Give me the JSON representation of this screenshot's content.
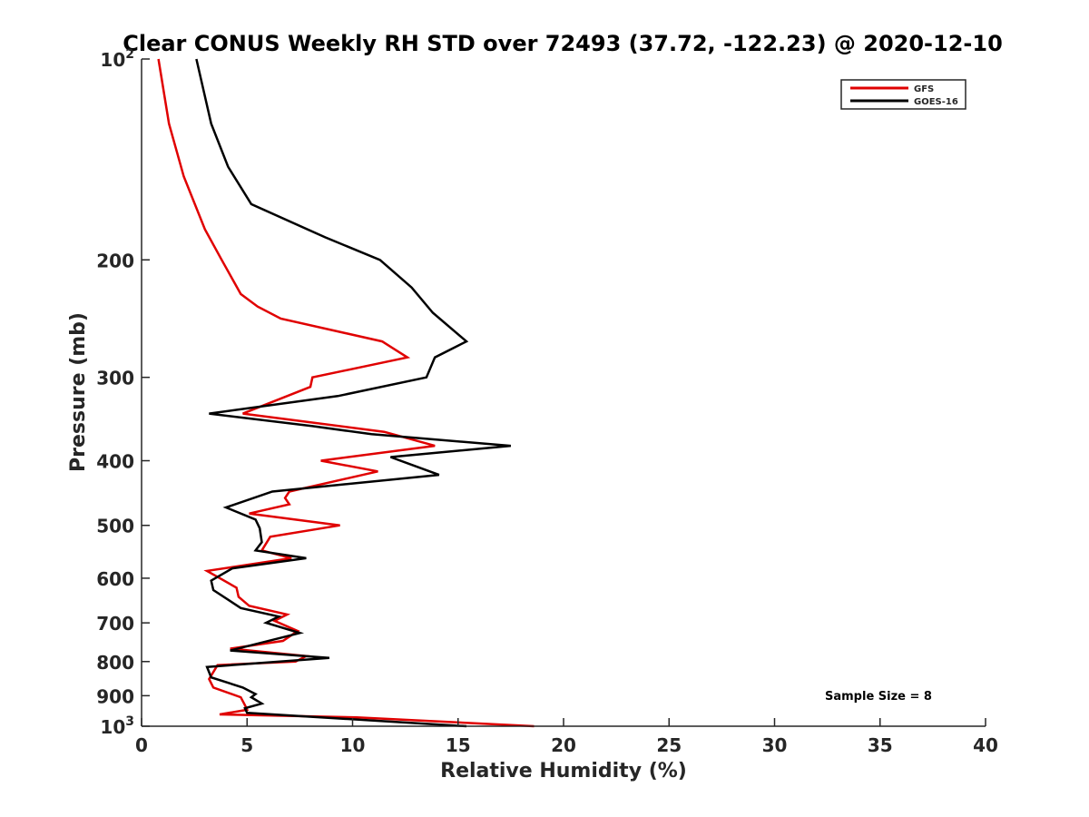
{
  "chart_data": {
    "type": "line",
    "title": "Clear CONUS Weekly RH STD over 72493 (37.72, -122.23) @ 2020-12-10",
    "xlabel": "Relative Humidity (%)",
    "ylabel": "Pressure (mb)",
    "xlim": [
      0,
      40
    ],
    "ylim": [
      1000,
      100
    ],
    "y_scale": "log",
    "y_reversed": true,
    "grid": false,
    "legend_position": "top-right",
    "xticks": [
      0,
      5,
      10,
      15,
      20,
      25,
      30,
      35,
      40
    ],
    "xtick_labels": [
      "0",
      "5",
      "10",
      "15",
      "20",
      "25",
      "30",
      "35",
      "40"
    ],
    "yticks": [
      100,
      200,
      300,
      400,
      500,
      600,
      700,
      800,
      900,
      1000
    ],
    "ytick_labels": [
      {
        "base": "10",
        "exp": "2"
      },
      {
        "base": "200",
        "exp": ""
      },
      {
        "base": "300",
        "exp": ""
      },
      {
        "base": "400",
        "exp": ""
      },
      {
        "base": "500",
        "exp": ""
      },
      {
        "base": "600",
        "exp": ""
      },
      {
        "base": "700",
        "exp": ""
      },
      {
        "base": "800",
        "exp": ""
      },
      {
        "base": "900",
        "exp": ""
      },
      {
        "base": "10",
        "exp": "3"
      }
    ],
    "annotation": "Sample Size = 8",
    "series": [
      {
        "name": "GFS",
        "color": "#e00000",
        "points": [
          [
            0.8,
            100
          ],
          [
            1.3,
            125
          ],
          [
            2.0,
            150
          ],
          [
            3.0,
            180
          ],
          [
            3.8,
            200
          ],
          [
            4.7,
            225
          ],
          [
            5.5,
            235
          ],
          [
            6.6,
            245
          ],
          [
            11.4,
            265
          ],
          [
            12.6,
            280
          ],
          [
            8.1,
            300
          ],
          [
            8.0,
            310
          ],
          [
            4.8,
            340
          ],
          [
            11.5,
            362
          ],
          [
            13.9,
            380
          ],
          [
            8.5,
            400
          ],
          [
            11.2,
            415
          ],
          [
            7.0,
            445
          ],
          [
            6.8,
            455
          ],
          [
            7.0,
            465
          ],
          [
            5.1,
            480
          ],
          [
            9.4,
            500
          ],
          [
            6.1,
            520
          ],
          [
            5.7,
            545
          ],
          [
            7.1,
            560
          ],
          [
            3.1,
            585
          ],
          [
            4.5,
            620
          ],
          [
            4.6,
            640
          ],
          [
            5.1,
            660
          ],
          [
            6.9,
            680
          ],
          [
            6.3,
            695
          ],
          [
            7.4,
            720
          ],
          [
            6.7,
            745
          ],
          [
            4.2,
            765
          ],
          [
            7.8,
            785
          ],
          [
            7.3,
            800
          ],
          [
            3.6,
            810
          ],
          [
            3.2,
            850
          ],
          [
            3.4,
            875
          ],
          [
            4.7,
            905
          ],
          [
            4.9,
            930
          ],
          [
            5.0,
            945
          ],
          [
            3.7,
            960
          ],
          [
            10.2,
            970
          ],
          [
            18.6,
            1000
          ]
        ]
      },
      {
        "name": "GOES-16",
        "color": "#000000",
        "points": [
          [
            2.6,
            100
          ],
          [
            3.3,
            125
          ],
          [
            4.1,
            145
          ],
          [
            5.2,
            165
          ],
          [
            8.7,
            185
          ],
          [
            11.3,
            200
          ],
          [
            12.8,
            220
          ],
          [
            13.8,
            240
          ],
          [
            15.4,
            265
          ],
          [
            13.9,
            280
          ],
          [
            13.5,
            300
          ],
          [
            9.3,
            320
          ],
          [
            3.2,
            340
          ],
          [
            8.1,
            355
          ],
          [
            10.9,
            365
          ],
          [
            17.5,
            380
          ],
          [
            11.8,
            395
          ],
          [
            14.1,
            420
          ],
          [
            6.2,
            445
          ],
          [
            4.0,
            470
          ],
          [
            5.4,
            490
          ],
          [
            5.6,
            505
          ],
          [
            5.7,
            530
          ],
          [
            5.4,
            545
          ],
          [
            7.8,
            560
          ],
          [
            4.3,
            580
          ],
          [
            3.3,
            605
          ],
          [
            3.4,
            625
          ],
          [
            4.7,
            665
          ],
          [
            6.5,
            685
          ],
          [
            5.9,
            700
          ],
          [
            7.5,
            725
          ],
          [
            4.2,
            770
          ],
          [
            8.9,
            790
          ],
          [
            3.1,
            815
          ],
          [
            3.3,
            845
          ],
          [
            4.8,
            875
          ],
          [
            5.4,
            895
          ],
          [
            5.2,
            905
          ],
          [
            5.7,
            925
          ],
          [
            4.9,
            940
          ],
          [
            5.0,
            955
          ],
          [
            15.4,
            1000
          ]
        ]
      }
    ]
  }
}
